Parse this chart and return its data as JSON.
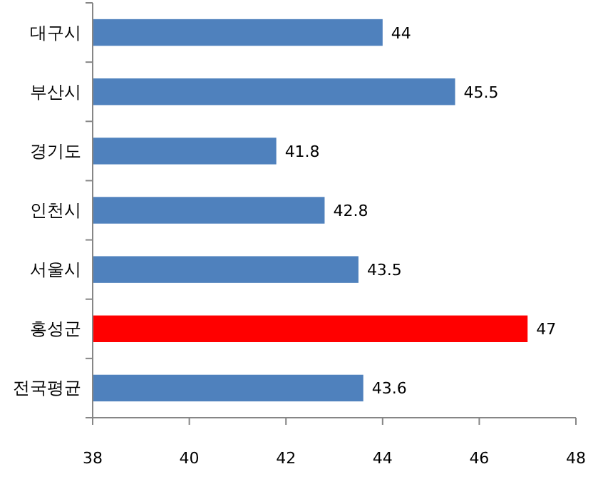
{
  "chart_data": {
    "type": "bar",
    "orientation": "horizontal",
    "categories": [
      "대구시",
      "부산시",
      "경기도",
      "인천시",
      "서울시",
      "홍성군",
      "전국평균"
    ],
    "values": [
      44,
      45.5,
      41.8,
      42.8,
      43.5,
      47,
      43.6
    ],
    "colors": [
      "#4f81bd",
      "#4f81bd",
      "#4f81bd",
      "#4f81bd",
      "#4f81bd",
      "#ff0000",
      "#4f81bd"
    ],
    "xlim": [
      38,
      48
    ],
    "xticks": [
      38,
      40,
      42,
      44,
      46,
      48
    ],
    "data_labels": true
  }
}
